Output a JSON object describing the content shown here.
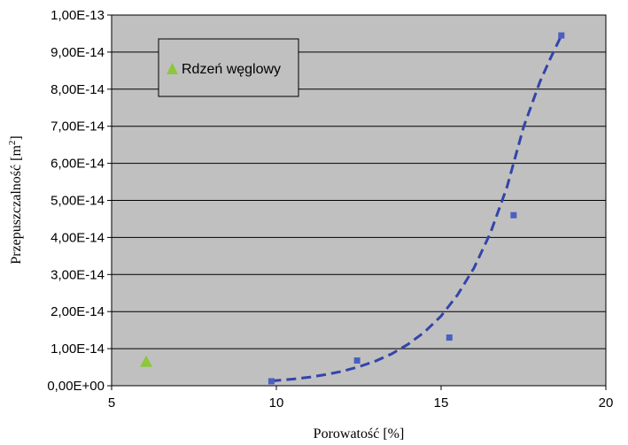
{
  "chart_data": {
    "type": "scatter",
    "title": "",
    "xlabel": "Porowatość [%]",
    "ylabel_main": "Przepuszczalność [m",
    "ylabel_sup": "2",
    "ylabel_end": "]",
    "xlim": [
      5,
      20
    ],
    "ylim": [
      0,
      1e-13
    ],
    "x_ticks": [
      5,
      10,
      15,
      20
    ],
    "x_tick_labels": [
      "5",
      "10",
      "15",
      "20"
    ],
    "y_ticks": [
      0,
      1e-14,
      2e-14,
      3e-14,
      4e-14,
      5e-14,
      6e-14,
      7e-14,
      8e-14,
      9e-14,
      1e-13
    ],
    "y_tick_labels": [
      "0,00E+00",
      "1,00E-14",
      "2,00E-14",
      "3,00E-14",
      "4,00E-14",
      "5,00E-14",
      "6,00E-14",
      "7,00E-14",
      "8,00E-14",
      "9,00E-14",
      "1,00E-13"
    ],
    "grid": "horizontal",
    "legend_position": "top-left",
    "plot_background": "#c0c0c0",
    "series": [
      {
        "name": "",
        "marker": "square",
        "color": "#4a5fc0",
        "x": [
          9.85,
          12.45,
          15.25,
          17.2,
          18.65
        ],
        "y": [
          1.2e-15,
          6.8e-15,
          1.3e-14,
          4.6e-14,
          9.45e-14
        ]
      },
      {
        "name": "Rdzeń węglowy",
        "marker": "triangle",
        "color": "#8dc63f",
        "x": [
          6.05
        ],
        "y": [
          6.5e-15
        ]
      }
    ],
    "trendline": {
      "type": "exponential",
      "color": "#3344aa",
      "style": "dashed",
      "x": [
        9.85,
        10.5,
        11.0,
        11.5,
        12.0,
        12.5,
        13.0,
        13.5,
        14.0,
        14.5,
        15.0,
        15.5,
        16.0,
        16.5,
        17.0,
        17.5,
        18.0,
        18.3,
        18.65
      ],
      "y": [
        1.3e-15,
        1.8e-15,
        2.3e-15,
        3e-15,
        3.9e-15,
        5.1e-15,
        6.6e-15,
        8.6e-15,
        1.12e-14,
        1.45e-14,
        1.88e-14,
        2.45e-14,
        3.18e-14,
        4.13e-14,
        5.36e-14,
        6.97e-14,
        8.2e-14,
        8.8e-14,
        9.45e-14
      ]
    }
  }
}
